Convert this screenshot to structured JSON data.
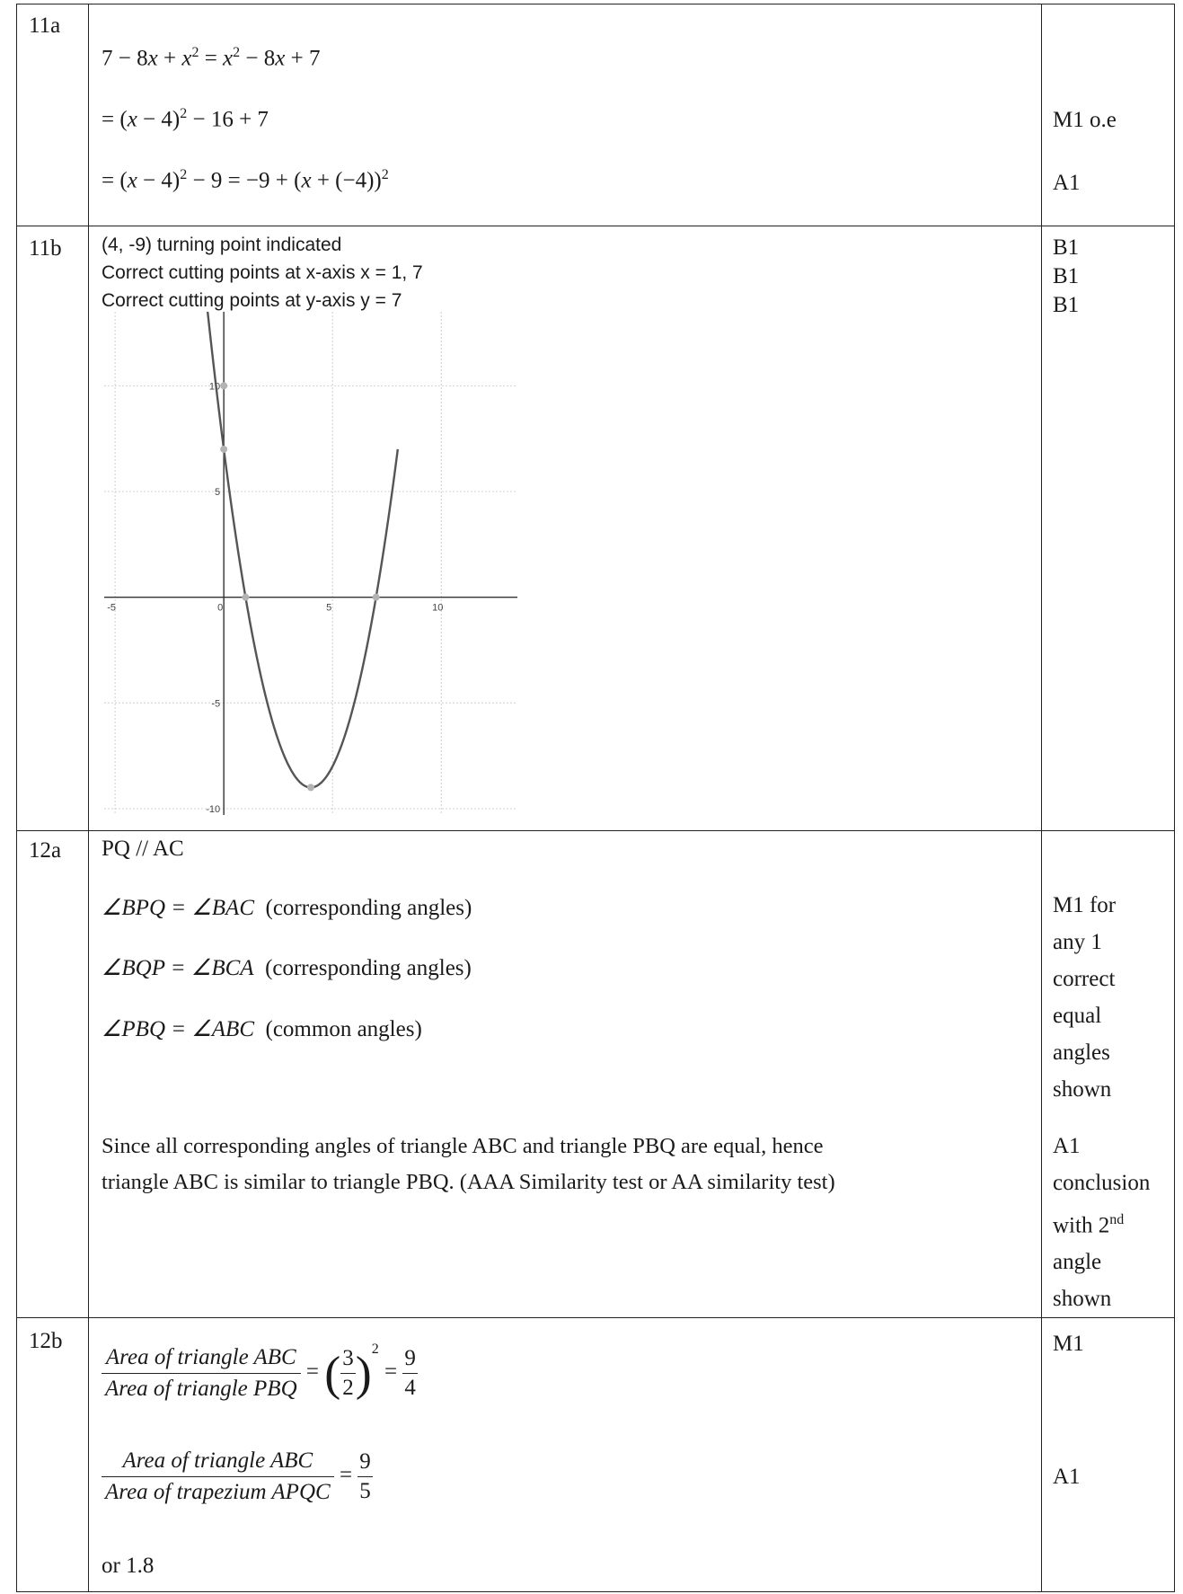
{
  "rows": [
    {
      "id": "11a",
      "label": "11a",
      "lines": [
        "7 − 8x + x² = x² − 8x + 7",
        "= (x − 4)² − 16 + 7",
        "= (x − 4)² − 9 = −9 + (x + (−4))²"
      ],
      "marks": [
        "M1 o.e",
        "A1"
      ]
    },
    {
      "id": "11b",
      "label": "11b",
      "lines": [
        "(4, -9) turning point indicated",
        "Correct cutting points at x-axis x = 1, 7",
        "Correct cutting points at y-axis y = 7"
      ],
      "marks": [
        "B1",
        "B1",
        "B1"
      ]
    },
    {
      "id": "12a",
      "label": "12a",
      "lines": [
        "PQ // AC",
        "∠BPQ = ∠BAC",
        "(corresponding angles)",
        "∠BQP = ∠BCA",
        "(corresponding angles)",
        "∠PBQ = ∠ABC",
        "(common angles)",
        "Since all corresponding angles of triangle ABC and triangle PBQ are equal, hence",
        "triangle ABC is similar to triangle PBQ. (AAA Similarity test or AA similarity test)"
      ],
      "marks": [
        "M1 for",
        "any 1",
        "correct",
        "equal",
        "angles",
        "shown",
        "A1",
        "conclusion",
        "with 2",
        "nd",
        "angle",
        "shown"
      ]
    },
    {
      "id": "12b",
      "label": "12b",
      "lines": [
        "Area of triangle ABC",
        "Area  of triangle PBQ",
        "3",
        "2",
        "2",
        "9",
        "4",
        "Area of triangle ABC",
        "Area  of trapezium APQC",
        "9",
        "5",
        "or 1.8"
      ],
      "marks": [
        "M1",
        "A1"
      ]
    }
  ],
  "chart_data": {
    "type": "line",
    "function": "y = x^2 - 8x + 7",
    "x_ticks": [
      "-5",
      "0",
      "5",
      "10"
    ],
    "y_ticks": [
      "10",
      "5",
      "-5",
      "-10"
    ],
    "xlim": [
      -5.5,
      13.5
    ],
    "ylim": [
      -10.3,
      13.5
    ],
    "grid": true,
    "points": [
      {
        "x": 0,
        "y": 7
      },
      {
        "x": 1,
        "y": 0
      },
      {
        "x": 7,
        "y": 0
      },
      {
        "x": 4,
        "y": -9
      },
      {
        "x": 0,
        "y": 10
      }
    ],
    "curve_color": "#555555",
    "point_color": "#b3b3b3"
  }
}
